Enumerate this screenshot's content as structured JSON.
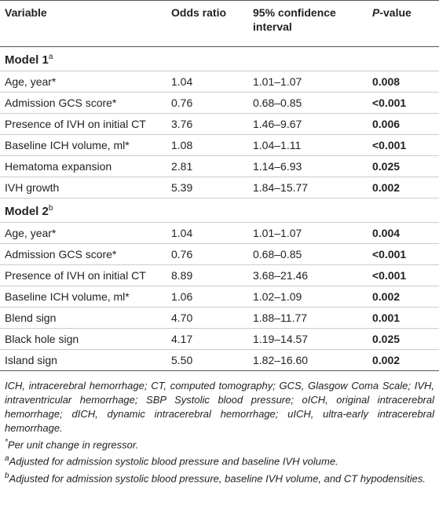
{
  "table": {
    "columns": [
      "Variable",
      "Odds ratio",
      "95% confidence interval",
      {
        "italic": "P",
        "rest": "-value"
      }
    ],
    "sections": [
      {
        "title": "Model 1",
        "note": "a",
        "rows": [
          [
            "Age, year*",
            "1.04",
            "1.01–1.07",
            "0.008"
          ],
          [
            "Admission GCS score*",
            "0.76",
            "0.68–0.85",
            "<0.001"
          ],
          [
            "Presence of IVH on initial CT",
            "3.76",
            "1.46–9.67",
            "0.006"
          ],
          [
            "Baseline ICH volume, ml*",
            "1.08",
            "1.04–1.11",
            "<0.001"
          ],
          [
            "Hematoma expansion",
            "2.81",
            "1.14–6.93",
            "0.025"
          ],
          [
            "IVH growth",
            "5.39",
            "1.84–15.77",
            "0.002"
          ]
        ]
      },
      {
        "title": "Model 2",
        "note": "b",
        "rows": [
          [
            "Age, year*",
            "1.04",
            "1.01–1.07",
            "0.004"
          ],
          [
            "Admission GCS score*",
            "0.76",
            "0.68–0.85",
            "<0.001"
          ],
          [
            "Presence of IVH on initial CT",
            "8.89",
            "3.68–21.46",
            "<0.001"
          ],
          [
            "Baseline ICH volume, ml*",
            "1.06",
            "1.02–1.09",
            "0.002"
          ],
          [
            "Blend sign",
            "4.70",
            "1.88–11.77",
            "0.001"
          ],
          [
            "Black hole sign",
            "4.17",
            "1.19–14.57",
            "0.025"
          ],
          [
            "Island sign",
            "5.50",
            "1.82–16.60",
            "0.002"
          ]
        ]
      }
    ]
  },
  "footnotes": [
    {
      "text": "ICH, intracerebral hemorrhage; CT, computed tomography; GCS, Glasgow Coma Scale; IVH, intraventricular hemorrhage; SBP Systolic blood pressure; oICH, original intracerebral hemorrhage; dICH, dynamic intracerebral hemorrhage; uICH, ultra-early intracerebral hemorrhage."
    },
    {
      "marker": "*",
      "text": "Per unit change in regressor."
    },
    {
      "marker": "a",
      "text": "Adjusted for admission systolic blood pressure and baseline IVH volume."
    },
    {
      "marker": "b",
      "text": "Adjusted for admission systolic blood pressure, baseline IVH volume, and CT hypodensities."
    }
  ]
}
